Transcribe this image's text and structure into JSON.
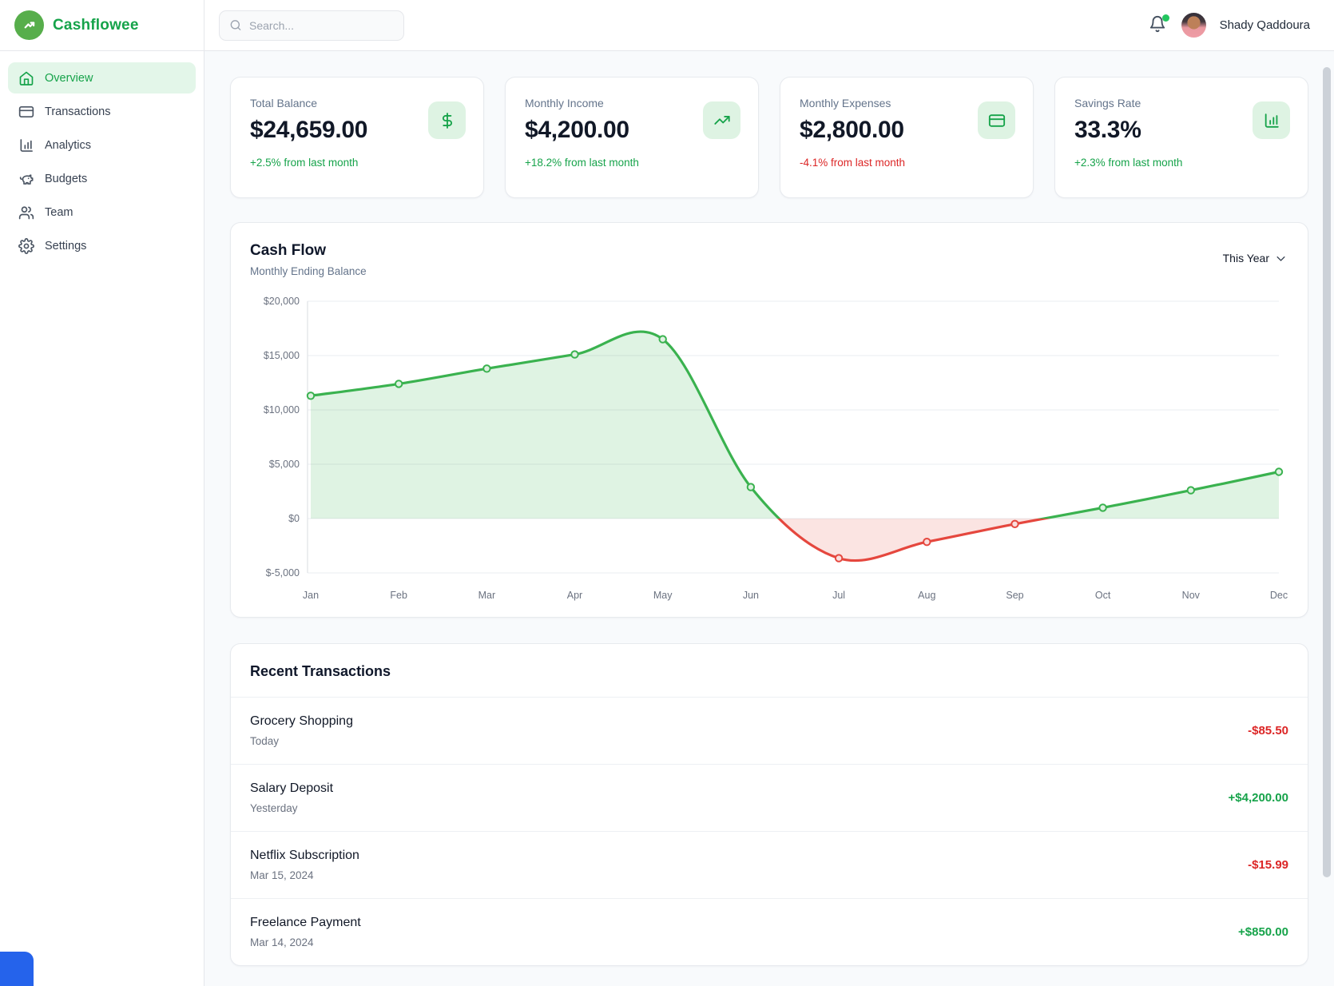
{
  "brand": {
    "name": "Cashflowee"
  },
  "topbar": {
    "search_placeholder": "Search...",
    "user_name": "Shady Qaddoura",
    "notification_dot_color": "#22c55e"
  },
  "sidebar": {
    "items": [
      {
        "label": "Overview",
        "icon": "home-icon",
        "active": true
      },
      {
        "label": "Transactions",
        "icon": "credit-card-icon",
        "active": false
      },
      {
        "label": "Analytics",
        "icon": "bar-chart-icon",
        "active": false
      },
      {
        "label": "Budgets",
        "icon": "piggy-bank-icon",
        "active": false
      },
      {
        "label": "Team",
        "icon": "users-icon",
        "active": false
      },
      {
        "label": "Settings",
        "icon": "gear-icon",
        "active": false
      }
    ]
  },
  "stats": [
    {
      "label": "Total Balance",
      "value": "$24,659.00",
      "delta": "+2.5% from last month",
      "delta_direction": "positive",
      "icon": "dollar-icon"
    },
    {
      "label": "Monthly Income",
      "value": "$4,200.00",
      "delta": "+18.2% from last month",
      "delta_direction": "positive",
      "icon": "trending-up-icon"
    },
    {
      "label": "Monthly Expenses",
      "value": "$2,800.00",
      "delta": "-4.1% from last month",
      "delta_direction": "negative",
      "icon": "credit-card-icon"
    },
    {
      "label": "Savings Rate",
      "value": "33.3%",
      "delta": "+2.3% from last month",
      "delta_direction": "positive",
      "icon": "bar-chart-icon"
    }
  ],
  "chart": {
    "title": "Cash Flow",
    "subtitle": "Monthly Ending Balance",
    "range_label": "This Year"
  },
  "chart_data": {
    "type": "line",
    "title": "Cash Flow",
    "subtitle": "Monthly Ending Balance",
    "x": [
      "Jan",
      "Feb",
      "Mar",
      "Apr",
      "May",
      "Jun",
      "Jul",
      "Aug",
      "Sep",
      "Oct",
      "Nov",
      "Dec"
    ],
    "values": [
      11300,
      12400,
      13800,
      15100,
      16500,
      2900,
      -3650,
      -2150,
      -500,
      1000,
      2600,
      4300
    ],
    "ylim": [
      -5000,
      20000
    ],
    "yticks": [
      20000,
      15000,
      10000,
      5000,
      0,
      -5000
    ],
    "ytick_labels": [
      "$20,000",
      "$15,000",
      "$10,000",
      "$5,000",
      "$0",
      "$-5,000"
    ],
    "grid": true,
    "legend": false,
    "smooth": true,
    "positive_color": "#3ab24f",
    "negative_color": "#e5473e",
    "positive_fill": "rgba(58,178,79,0.16)",
    "negative_fill": "rgba(229,71,62,0.15)",
    "gridline_color": "#eef0f3",
    "axis_label_color": "#6b7280"
  },
  "transactions": {
    "title": "Recent Transactions",
    "rows": [
      {
        "name": "Grocery Shopping",
        "date": "Today",
        "amount": "-$85.50",
        "direction": "negative"
      },
      {
        "name": "Salary Deposit",
        "date": "Yesterday",
        "amount": "+$4,200.00",
        "direction": "positive"
      },
      {
        "name": "Netflix Subscription",
        "date": "Mar 15, 2024",
        "amount": "-$15.99",
        "direction": "negative"
      },
      {
        "name": "Freelance Payment",
        "date": "Mar 14, 2024",
        "amount": "+$850.00",
        "direction": "positive"
      }
    ]
  },
  "colors": {
    "brand_green": "#16a34a",
    "positive_text": "#16a34a",
    "negative_text": "#dc2626",
    "icon_tile_bg": "#def3e3",
    "active_nav_bg": "#e3f6e9",
    "page_bg": "#f8fafc"
  }
}
